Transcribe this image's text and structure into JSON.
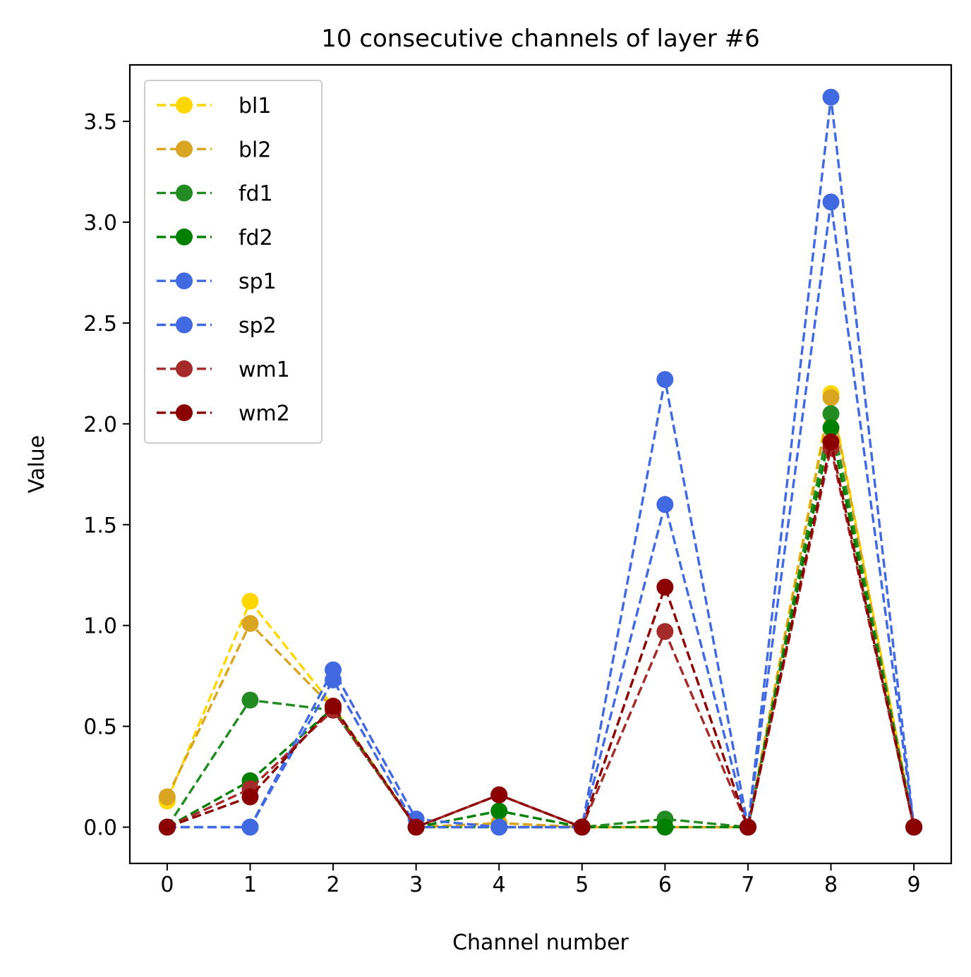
{
  "chart_data": {
    "type": "line",
    "title": "10 consecutive channels of layer #6",
    "xlabel": "Channel number",
    "ylabel": "Value",
    "xlim": [
      -0.45,
      9.45
    ],
    "ylim": [
      -0.18,
      3.78
    ],
    "x": [
      0,
      1,
      2,
      3,
      4,
      5,
      6,
      7,
      8,
      9
    ],
    "x_ticks": [
      "0",
      "1",
      "2",
      "3",
      "4",
      "5",
      "6",
      "7",
      "8",
      "9"
    ],
    "y_ticks": [
      {
        "value": 0.0,
        "label": "0.0"
      },
      {
        "value": 0.5,
        "label": "0.5"
      },
      {
        "value": 1.0,
        "label": "1.0"
      },
      {
        "value": 1.5,
        "label": "1.5"
      },
      {
        "value": 2.0,
        "label": "2.0"
      },
      {
        "value": 2.5,
        "label": "2.5"
      },
      {
        "value": 3.0,
        "label": "3.0"
      },
      {
        "value": 3.5,
        "label": "3.5"
      }
    ],
    "grid": false,
    "legend_position": "top-left",
    "line_style": "dashed",
    "marker": "circle",
    "series": [
      {
        "name": "bl1",
        "color": "#FFD700",
        "values": [
          0.13,
          1.12,
          0.6,
          0.0,
          0.02,
          0.0,
          0.0,
          0.0,
          2.15,
          0.0
        ]
      },
      {
        "name": "bl2",
        "color": "#DAA520",
        "values": [
          0.15,
          1.01,
          0.59,
          0.0,
          0.02,
          0.0,
          0.0,
          0.0,
          2.13,
          0.0
        ]
      },
      {
        "name": "fd1",
        "color": "#228B22",
        "values": [
          0.0,
          0.63,
          0.58,
          0.0,
          0.0,
          0.0,
          0.04,
          0.0,
          2.05,
          0.0
        ]
      },
      {
        "name": "fd2",
        "color": "#008000",
        "values": [
          0.0,
          0.23,
          0.59,
          0.0,
          0.08,
          0.0,
          0.0,
          0.0,
          1.98,
          0.0
        ]
      },
      {
        "name": "sp1",
        "color": "#4169E1",
        "values": [
          0.0,
          0.0,
          0.78,
          0.04,
          0.0,
          0.0,
          2.22,
          0.0,
          3.62,
          0.0
        ]
      },
      {
        "name": "sp2",
        "color": "#4169E1",
        "values": [
          0.0,
          0.0,
          0.73,
          0.0,
          0.0,
          0.0,
          1.6,
          0.0,
          3.1,
          0.0
        ]
      },
      {
        "name": "wm1",
        "color": "#A52A2A",
        "values": [
          0.0,
          0.19,
          0.58,
          0.0,
          0.16,
          0.0,
          0.97,
          0.0,
          1.88,
          0.0
        ]
      },
      {
        "name": "wm2",
        "color": "#8B0000",
        "values": [
          0.0,
          0.15,
          0.6,
          0.0,
          0.16,
          0.0,
          1.19,
          0.0,
          1.91,
          0.0
        ]
      }
    ]
  }
}
